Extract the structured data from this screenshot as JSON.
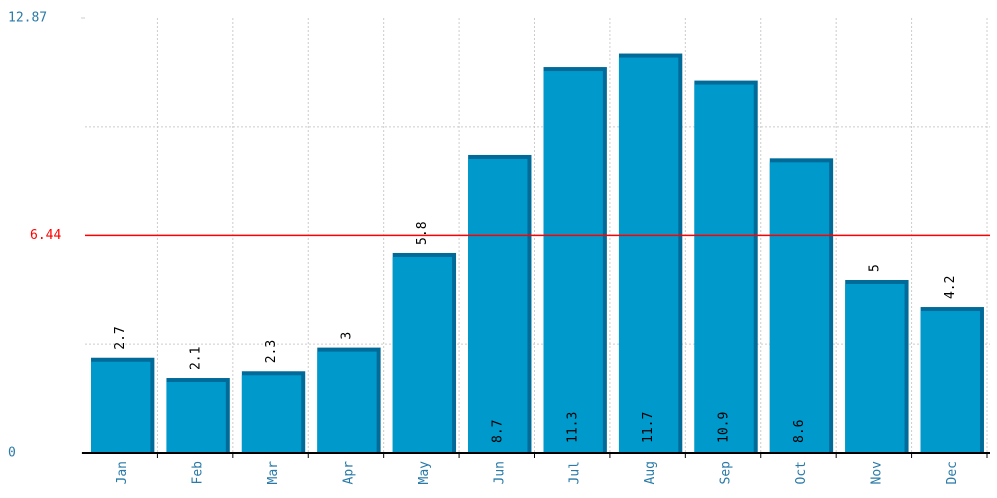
{
  "chart_data": {
    "type": "bar",
    "categories": [
      "Jan",
      "Feb",
      "Mar",
      "Apr",
      "May",
      "Jun",
      "Jul",
      "Aug",
      "Sep",
      "Oct",
      "Nov",
      "Dec"
    ],
    "values": [
      2.7,
      2.1,
      2.3,
      3,
      5.8,
      8.7,
      11.3,
      11.7,
      10.9,
      8.6,
      5,
      4.2
    ],
    "color": "#0099cc",
    "shadow_color": "#006a99",
    "ylim": [
      0,
      12.87
    ],
    "yticks": [
      0,
      12.87
    ],
    "ytick_color": "#2a7aa8",
    "minor_yticks": [
      3.22,
      9.65
    ],
    "grid": true,
    "reference_line": {
      "value": 6.44,
      "label": "6.44",
      "color": "#ff0000"
    }
  }
}
